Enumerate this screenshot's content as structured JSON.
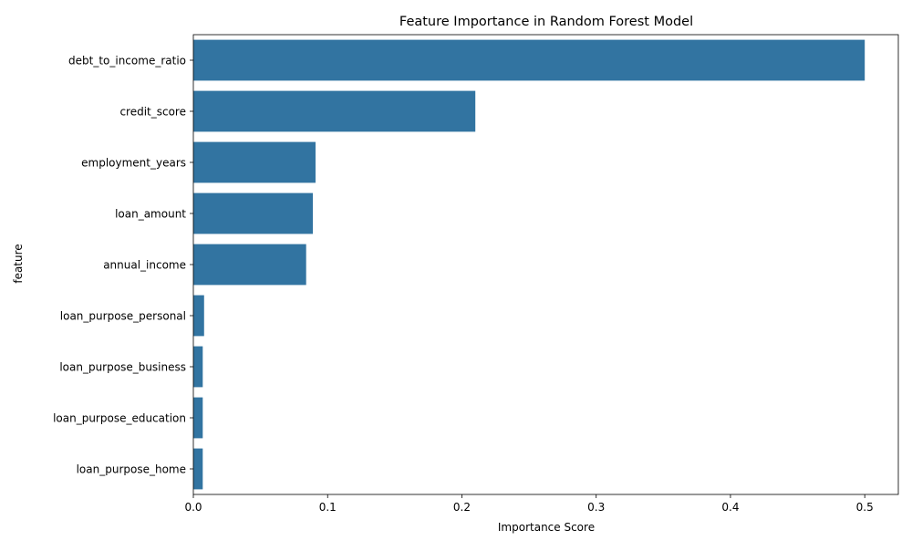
{
  "chart_data": {
    "type": "bar",
    "orientation": "horizontal",
    "title": "Feature Importance in Random Forest Model",
    "xlabel": "Importance Score",
    "ylabel": "feature",
    "categories": [
      "debt_to_income_ratio",
      "credit_score",
      "employment_years",
      "loan_amount",
      "annual_income",
      "loan_purpose_personal",
      "loan_purpose_business",
      "loan_purpose_education",
      "loan_purpose_home"
    ],
    "values": [
      0.5,
      0.21,
      0.091,
      0.089,
      0.084,
      0.008,
      0.007,
      0.007,
      0.007
    ],
    "xlim": [
      0,
      0.525
    ],
    "xticks": [
      0.0,
      0.1,
      0.2,
      0.3,
      0.4,
      0.5
    ],
    "xtick_labels": [
      "0.0",
      "0.1",
      "0.2",
      "0.3",
      "0.4",
      "0.5"
    ],
    "grid": false,
    "legend": "none",
    "bar_color": "#3274a1"
  }
}
